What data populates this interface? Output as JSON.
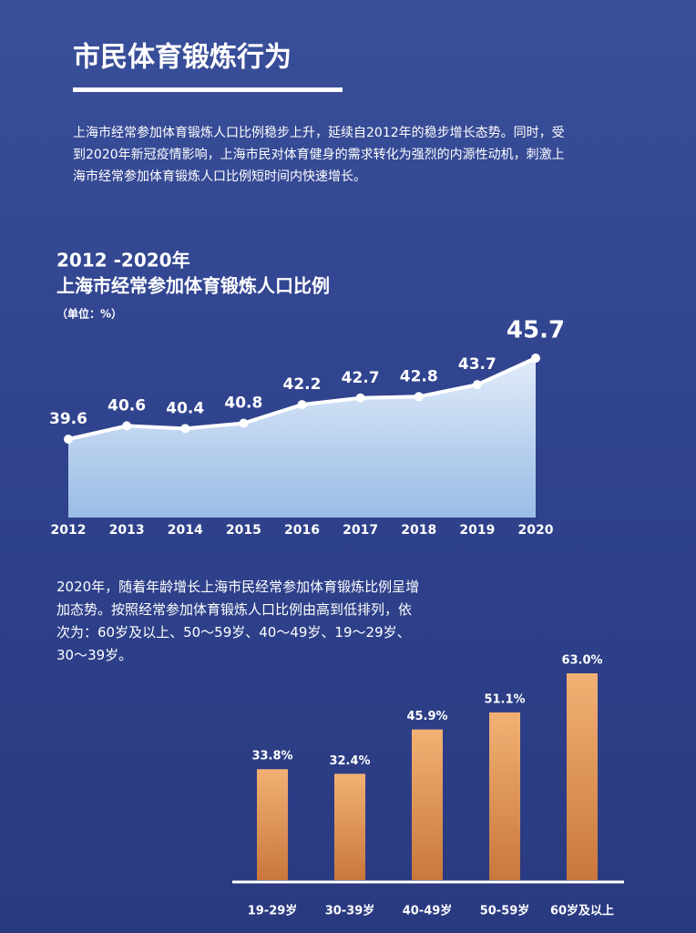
{
  "page": {
    "title": "市民体育锻炼行为",
    "intro": "上海市经常参加体育锻炼人口比例稳步上升，延续自2012年的稳步增长态势。同时，受到2020年新冠疫情影响，上海市民对体育健身的需求转化为强烈的内源性动机，刺激上海市经常参加体育锻炼人口比例短时间内快速增长。",
    "note": "2020年，随着年龄增长上海市民经常参加体育锻炼比例呈增加态势。按照经常参加体育锻炼人口比例由高到低排列，依次为：60岁及以上、50～59岁、40～49岁、19～29岁、30～39岁。"
  },
  "chart_data": [
    {
      "type": "line",
      "title": "2012 -2020年",
      "subtitle": "上海市经常参加体育锻炼人口比例",
      "unit": "（单位：%）",
      "categories": [
        "2012",
        "2013",
        "2014",
        "2015",
        "2016",
        "2017",
        "2018",
        "2019",
        "2020"
      ],
      "values": [
        39.6,
        40.6,
        40.4,
        40.8,
        42.2,
        42.7,
        42.8,
        43.7,
        45.7
      ],
      "color": "#ffffff",
      "area_color": "#cfe3f8"
    },
    {
      "type": "bar",
      "categories": [
        "19-29岁",
        "30-39岁",
        "40-49岁",
        "50-59岁",
        "60岁及以上"
      ],
      "values": [
        33.8,
        32.4,
        45.9,
        51.1,
        63.0
      ],
      "value_labels": [
        "33.8%",
        "32.4%",
        "45.9%",
        "51.1%",
        "63.0%"
      ],
      "color": "#e9a263"
    }
  ]
}
